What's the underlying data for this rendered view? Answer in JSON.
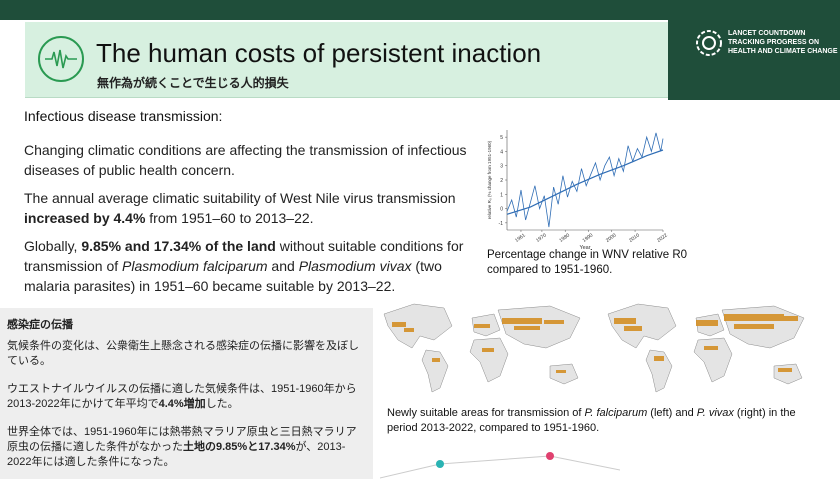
{
  "header": {
    "title": "The human costs of persistent inaction",
    "subtitle": "無作為が続くことで生じる人的損失",
    "icon": "heartbeat-icon",
    "logo_lines": [
      "LANCET COUNTDOWN",
      "TRACKING PROGRESS ON",
      "HEALTH AND CLIMATE CHANGE"
    ]
  },
  "colors": {
    "dark_green": "#1f4e3a",
    "light_green": "#d7f0e0",
    "accent": "#2a9a52",
    "line": "#2f6db5"
  },
  "body": {
    "section_heading": "Infectious disease transmission:",
    "p1": "Changing climatic conditions are affecting the transmission of infectious diseases of public health concern.",
    "p2_a": "The annual average climatic suitability of West Nile virus transmission ",
    "p2_b": "increased by 4.4%",
    "p2_c": " from 1951–60 to 2013–22.",
    "p3_a": "Globally, ",
    "p3_b": "9.85% and 17.34% of the land",
    "p3_c": " without suitable conditions for transmission of ",
    "p3_d": "Plasmodium falciparum",
    "p3_e": " and ",
    "p3_f": "Plasmodium vivax",
    "p3_g": " (two malaria parasites) in 1951–60 became suitable by 2013–22."
  },
  "chart_caption": "Percentage change in WNV relative R0 compared to 1951-1960.",
  "chart_data": {
    "type": "line",
    "xlabel": "Year",
    "ylabel": "relative R₀ (% change from 1951-1960)",
    "x_ticks": [
      "1961",
      "1970",
      "1980",
      "1990",
      "2000",
      "2010",
      "2022"
    ],
    "y_ticks": [
      "-1",
      "0",
      "1",
      "2",
      "3",
      "4",
      "5"
    ],
    "ylim": [
      -1.5,
      5.5
    ],
    "xlim": [
      1955,
      2022
    ],
    "series": [
      {
        "x": [
          1955,
          1957,
          1959,
          1961,
          1963,
          1965,
          1967,
          1969,
          1971,
          1973,
          1975,
          1977,
          1979,
          1981,
          1983,
          1985,
          1987,
          1989,
          1991,
          1993,
          1995,
          1997,
          1999,
          2001,
          2003,
          2005,
          2007,
          2009,
          2011,
          2013,
          2015,
          2017,
          2019,
          2021,
          2022
        ],
        "values": [
          -0.2,
          0.6,
          -0.6,
          1.3,
          -0.8,
          0.4,
          1.6,
          0.0,
          0.9,
          -1.3,
          1.5,
          0.3,
          2.3,
          0.8,
          1.9,
          1.2,
          2.8,
          1.6,
          2.4,
          3.2,
          2.0,
          3.0,
          3.6,
          2.3,
          3.5,
          2.6,
          4.4,
          3.3,
          4.2,
          3.6,
          5.0,
          4.0,
          5.3,
          4.0,
          4.9
        ]
      },
      {
        "x": [
          1955,
          1965,
          1975,
          1985,
          1995,
          2005,
          2015,
          2022
        ],
        "values": [
          -0.4,
          0.1,
          0.9,
          1.7,
          2.4,
          3.0,
          3.7,
          4.1
        ]
      }
    ]
  },
  "japanese": {
    "heading": "感染症の伝播",
    "p1": "気候条件の変化は、公衆衛生上懸念される感染症の伝播に影響を及ぼしている。",
    "p2_a": "ウエストナイルウイルスの伝播に適した気候条件は、1951-1960年から2013-2022年にかけて年平均で",
    "p2_b": "4.4%増加",
    "p2_c": "した。",
    "p3_a": "世界全体では、1951-1960年には熱帯熱マラリア原虫と三日熱マラリア原虫の伝播に適した条件がなかった",
    "p3_b": "土地の9.85%と17.34%",
    "p3_c": "が、2013-2022年には適した条件になった。"
  },
  "map_caption": {
    "a": "Newly suitable areas for transmission of ",
    "b": "P. falciparum",
    "c": " (left) and ",
    "d": "P. vivax",
    "e": " (right) in the period 2013-2022, compared to 1951-1960."
  }
}
